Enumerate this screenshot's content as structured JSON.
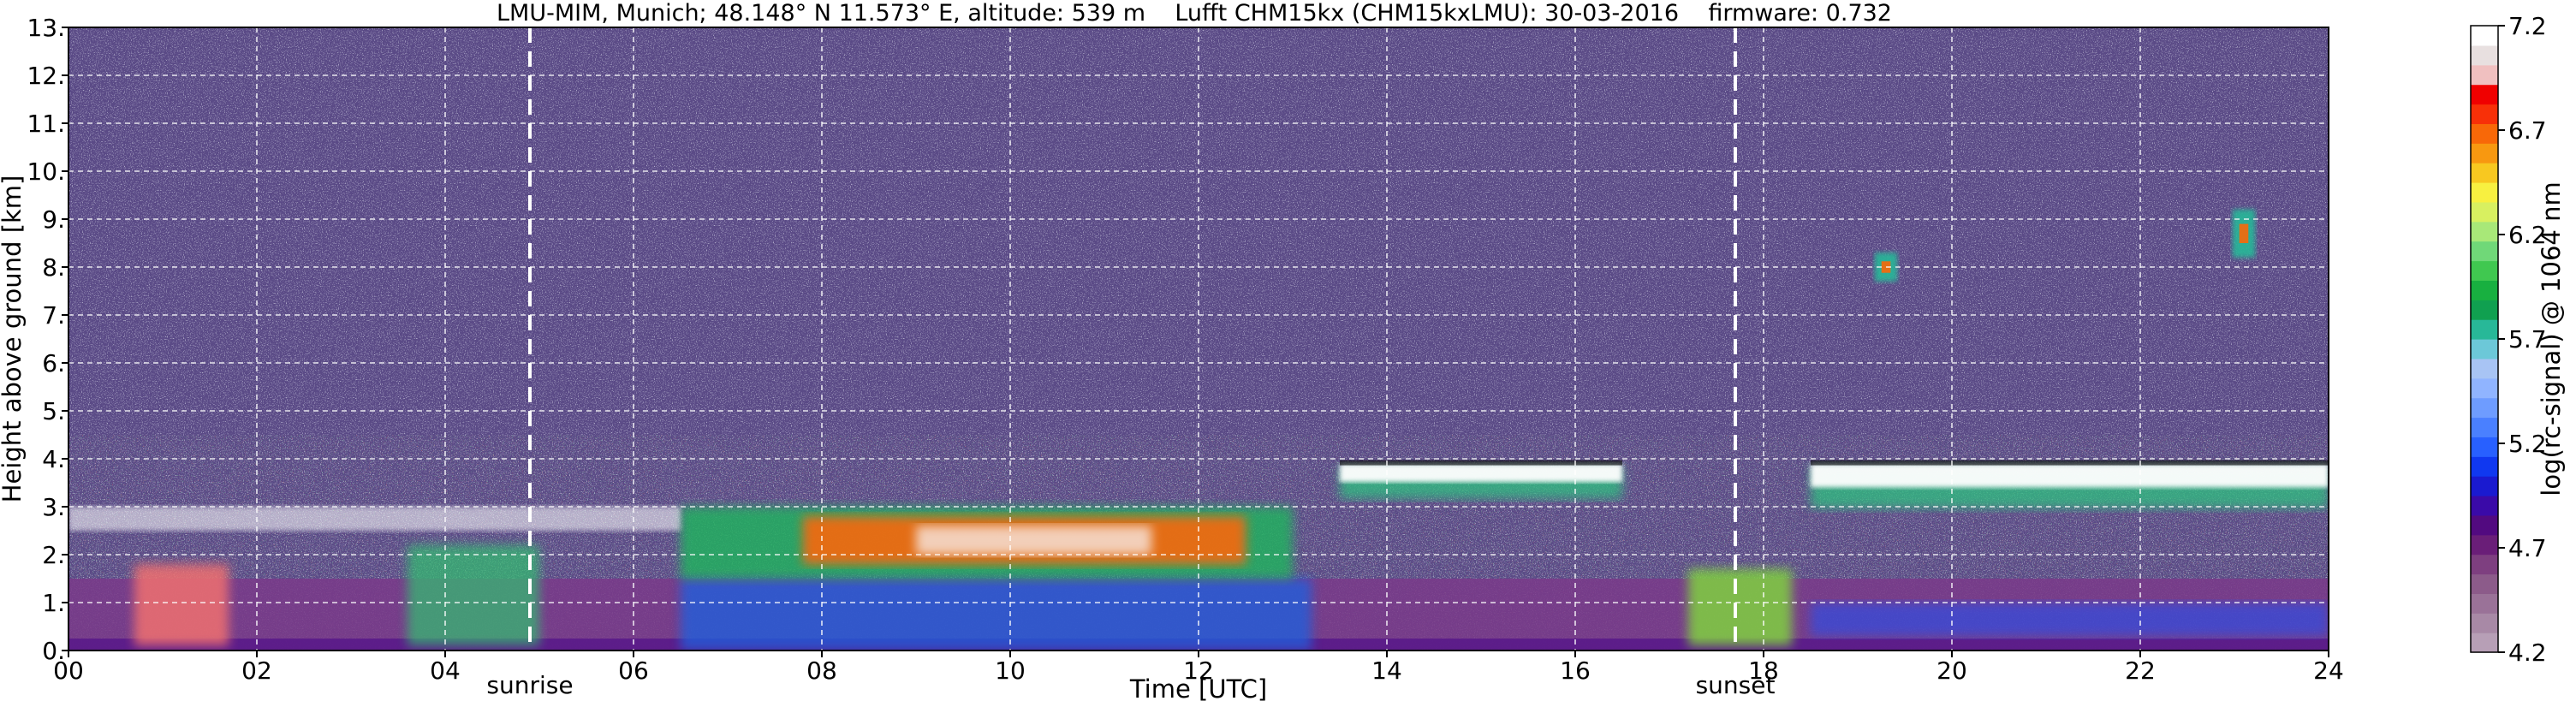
{
  "chart_data": {
    "type": "heatmap",
    "title": "LMU-MIM, Munich; 48.148° N 11.573° E, altitude: 539 m    Lufft CHM15kx (CHM15kxLMU): 30-03-2016    firmware: 0.732",
    "xlabel": "Time [UTC]",
    "ylabel": "Height above ground [km]",
    "xlim": [
      0,
      24
    ],
    "ylim": [
      0,
      13
    ],
    "x_ticks": [
      "00",
      "02",
      "04",
      "06",
      "08",
      "10",
      "12",
      "14",
      "16",
      "18",
      "20",
      "22",
      "24"
    ],
    "x_tick_values": [
      0,
      2,
      4,
      6,
      8,
      10,
      12,
      14,
      16,
      18,
      20,
      22,
      24
    ],
    "y_ticks": [
      "0.",
      "1.",
      "2.",
      "3.",
      "4.",
      "5.",
      "6.",
      "7.",
      "8.",
      "9.",
      "10.",
      "11.",
      "12.",
      "13."
    ],
    "y_tick_values": [
      0,
      1,
      2,
      3,
      4,
      5,
      6,
      7,
      8,
      9,
      10,
      11,
      12,
      13
    ],
    "grid": true,
    "events": [
      {
        "label": "sunrise",
        "time": 4.9
      },
      {
        "label": "sunset",
        "time": 17.7
      }
    ],
    "colorbar": {
      "label": "log(rc-signal) @ 1064 nm",
      "ticks": [
        "4.2",
        "4.7",
        "5.2",
        "5.7",
        "6.2",
        "6.7",
        "7.2"
      ],
      "tick_values": [
        4.2,
        4.7,
        5.2,
        5.7,
        6.2,
        6.7,
        7.2
      ],
      "range": [
        4.2,
        7.2
      ],
      "colors": [
        "#b79fb6",
        "#a889a6",
        "#9a7298",
        "#8c5b8a",
        "#7e3f80",
        "#6a1e78",
        "#520a80",
        "#3a0aa8",
        "#1a1ad0",
        "#1038f0",
        "#2860ff",
        "#4a80ff",
        "#6e9cff",
        "#90b4ff",
        "#a8c4f4",
        "#6cc8d8",
        "#28b898",
        "#10a050",
        "#18b040",
        "#40c850",
        "#70d878",
        "#a8e878",
        "#d8f060",
        "#f8f040",
        "#f8c820",
        "#f89810",
        "#f86808",
        "#f83008",
        "#f00000",
        "#f0c0c0",
        "#e8e0e0",
        "#ffffff"
      ]
    },
    "features": [
      {
        "kind": "boundary-layer",
        "time_range": [
          0,
          24
        ],
        "height_km": [
          0,
          1.5
        ],
        "level": "high"
      },
      {
        "kind": "aerosol-layer",
        "time_range": [
          6.5,
          13
        ],
        "height_km": [
          1.5,
          3.0
        ],
        "level": "high"
      },
      {
        "kind": "cloud",
        "time_range": [
          13.5,
          16.5
        ],
        "height_km": [
          3.2,
          3.9
        ],
        "level": "saturated"
      },
      {
        "kind": "cloud",
        "time_range": [
          18.5,
          24
        ],
        "height_km": [
          3.0,
          3.9
        ],
        "level": "saturated"
      },
      {
        "kind": "cirrus",
        "time": 19.3,
        "height_km": [
          7.7,
          8.3
        ],
        "level": "medium"
      },
      {
        "kind": "cirrus",
        "time": 23.1,
        "height_km": [
          8.2,
          9.2
        ],
        "level": "medium"
      }
    ]
  }
}
